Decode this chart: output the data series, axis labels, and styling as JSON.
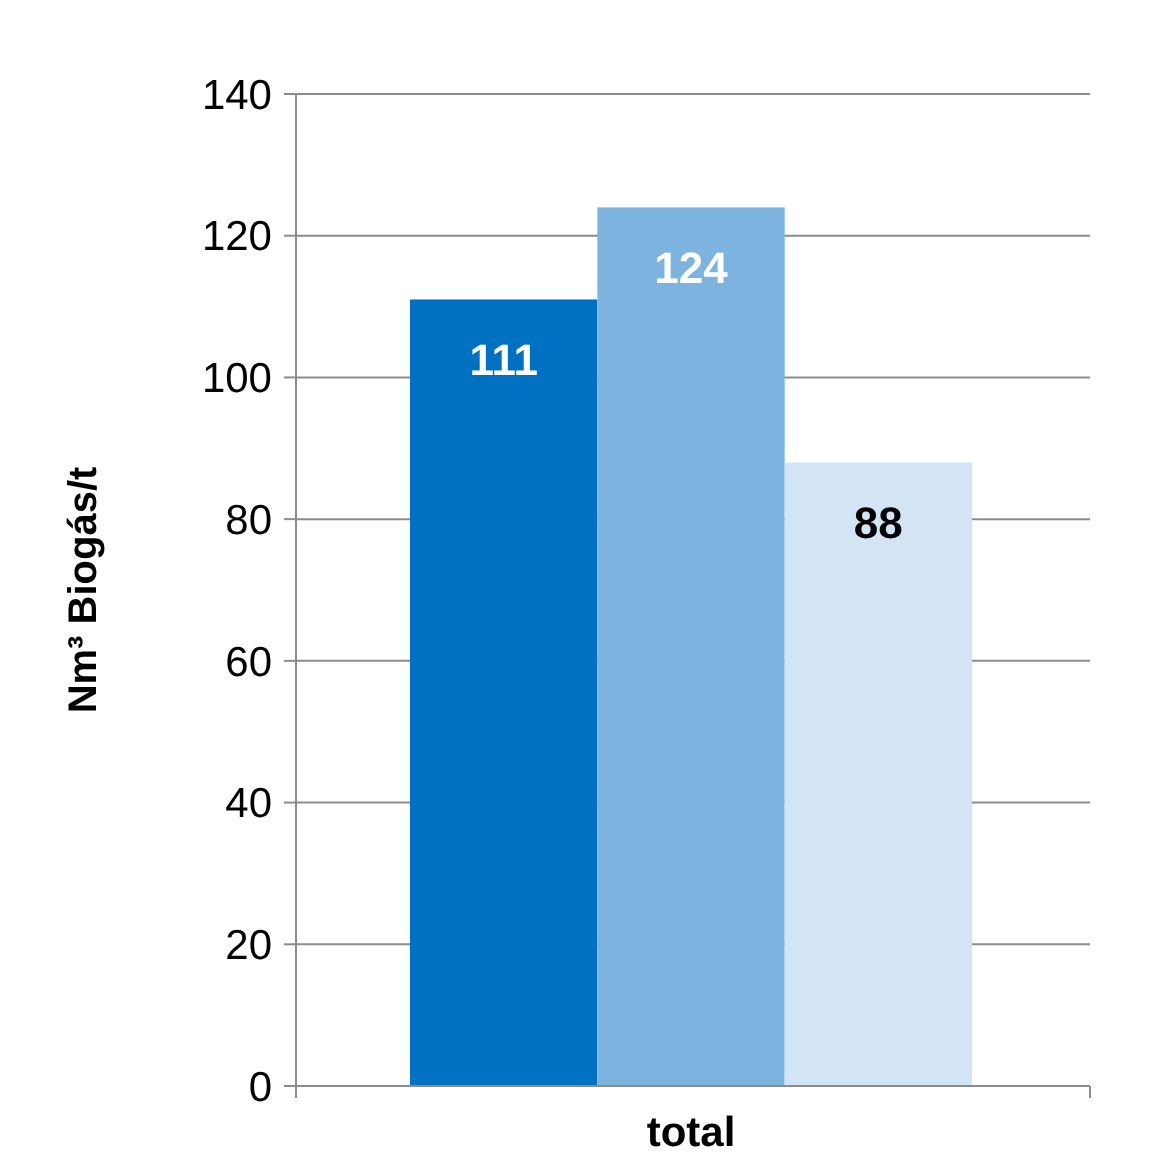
{
  "chart_data": {
    "type": "bar",
    "ylabel": "Nm³ Biogás/t",
    "categories": [
      null,
      "total",
      null
    ],
    "values": [
      111,
      124,
      88
    ],
    "colors": [
      "#0070c0",
      "#7db3df",
      "#d3e5f5"
    ],
    "ylim": [
      0,
      140
    ],
    "yticks": [
      0,
      20,
      40,
      60,
      80,
      100,
      120,
      140
    ],
    "grid": "y",
    "data_labels": true
  }
}
